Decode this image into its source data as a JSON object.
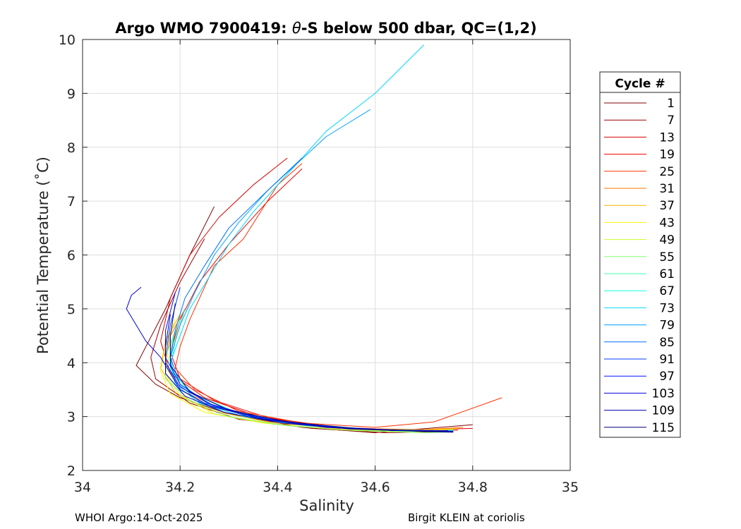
{
  "chart_data": {
    "type": "line",
    "title_prefix": "Argo WMO 7900419: ",
    "title_theta": "θ",
    "title_suffix": "-S below 500 dbar,  QC=(1,2)",
    "xlabel": "Salinity",
    "ylabel": "Potential Temperature (˚C)",
    "xlim": [
      34,
      35
    ],
    "ylim": [
      2,
      10
    ],
    "xticks": [
      "34",
      "34.2",
      "34.4",
      "34.6",
      "34.8",
      "35"
    ],
    "yticks": [
      "2",
      "3",
      "4",
      "5",
      "6",
      "7",
      "8",
      "9",
      "10"
    ],
    "grid": true,
    "legend_position": "right",
    "legend_title": "Cycle #",
    "legend": [
      {
        "label": "1",
        "color": "#800000"
      },
      {
        "label": "7",
        "color": "#a00000"
      },
      {
        "label": "13",
        "color": "#d40000"
      },
      {
        "label": "19",
        "color": "#f00000"
      },
      {
        "label": "25",
        "color": "#ff3000"
      },
      {
        "label": "31",
        "color": "#ff7000"
      },
      {
        "label": "37",
        "color": "#ffb000"
      },
      {
        "label": "43",
        "color": "#fff000"
      },
      {
        "label": "49",
        "color": "#c8ff28"
      },
      {
        "label": "55",
        "color": "#80ff70"
      },
      {
        "label": "61",
        "color": "#40ffb0"
      },
      {
        "label": "67",
        "color": "#10ffe0"
      },
      {
        "label": "73",
        "color": "#00d8ff"
      },
      {
        "label": "79",
        "color": "#00a0ff"
      },
      {
        "label": "85",
        "color": "#0070ff"
      },
      {
        "label": "91",
        "color": "#0040ff"
      },
      {
        "label": "97",
        "color": "#0010ff"
      },
      {
        "label": "103",
        "color": "#0000d8"
      },
      {
        "label": "109",
        "color": "#0000a8"
      },
      {
        "label": "115",
        "color": "#000080"
      }
    ],
    "series": [
      {
        "name": "cycle 1",
        "color": "#800000",
        "x": [
          34.27,
          34.22,
          34.17,
          34.13,
          34.11,
          34.15,
          34.2,
          34.3,
          34.45,
          34.6,
          34.8
        ],
        "y": [
          6.9,
          6.0,
          5.0,
          4.3,
          3.95,
          3.6,
          3.35,
          3.05,
          2.8,
          2.7,
          2.85
        ]
      },
      {
        "name": "cycle 7",
        "color": "#a00000",
        "x": [
          34.25,
          34.2,
          34.16,
          34.14,
          34.15,
          34.22,
          34.32,
          34.47,
          34.62,
          34.76
        ],
        "y": [
          6.3,
          5.5,
          4.7,
          4.1,
          3.7,
          3.25,
          2.95,
          2.78,
          2.7,
          2.72
        ]
      },
      {
        "name": "cycle 13",
        "color": "#d40000",
        "x": [
          34.42,
          34.35,
          34.28,
          34.22,
          34.18,
          34.16,
          34.18,
          34.25,
          34.36,
          34.5,
          34.65,
          34.77
        ],
        "y": [
          7.8,
          7.3,
          6.7,
          6.0,
          5.2,
          4.4,
          3.8,
          3.35,
          3.0,
          2.8,
          2.73,
          2.75
        ]
      },
      {
        "name": "cycle 19",
        "color": "#f00000",
        "x": [
          34.45,
          34.38,
          34.3,
          34.24,
          34.2,
          34.18,
          34.2,
          34.27,
          34.38,
          34.52,
          34.67,
          34.8
        ],
        "y": [
          7.6,
          7.0,
          6.2,
          5.5,
          4.8,
          4.2,
          3.7,
          3.3,
          2.98,
          2.8,
          2.75,
          2.78
        ]
      },
      {
        "name": "cycle 25",
        "color": "#ff3000",
        "x": [
          34.45,
          34.4,
          34.33,
          34.27,
          34.24,
          34.22,
          34.2,
          34.19,
          34.23,
          34.32,
          34.45,
          34.6,
          34.72,
          34.86
        ],
        "y": [
          7.7,
          7.3,
          6.3,
          5.8,
          5.2,
          4.8,
          4.3,
          3.9,
          3.5,
          3.1,
          2.88,
          2.8,
          2.9,
          3.35
        ]
      },
      {
        "name": "cycle 31",
        "color": "#ff7000",
        "x": [
          34.21,
          34.18,
          34.17,
          34.2,
          34.28,
          34.4,
          34.55,
          34.7,
          34.78
        ],
        "y": [
          5.0,
          4.5,
          4.0,
          3.5,
          3.15,
          2.92,
          2.78,
          2.76,
          2.8
        ]
      },
      {
        "name": "cycle 37",
        "color": "#ffb000",
        "x": [
          34.2,
          34.17,
          34.16,
          34.19,
          34.26,
          34.38,
          34.53,
          34.68,
          34.77
        ],
        "y": [
          4.9,
          4.4,
          3.9,
          3.45,
          3.12,
          2.9,
          2.77,
          2.74,
          2.78
        ]
      },
      {
        "name": "cycle 43",
        "color": "#fff000",
        "x": [
          34.19,
          34.17,
          34.16,
          34.18,
          34.25,
          34.37,
          34.52,
          34.67,
          34.76
        ],
        "y": [
          4.8,
          4.3,
          3.85,
          3.42,
          3.08,
          2.88,
          2.76,
          2.73,
          2.76
        ]
      },
      {
        "name": "cycle 49",
        "color": "#c8ff28",
        "x": [
          34.2,
          34.18,
          34.17,
          34.2,
          34.27,
          34.39,
          34.54,
          34.69,
          34.76
        ],
        "y": [
          4.7,
          4.2,
          3.8,
          3.38,
          3.05,
          2.86,
          2.75,
          2.72,
          2.74
        ]
      },
      {
        "name": "cycle 55",
        "color": "#80ff70",
        "x": [
          34.19,
          34.17,
          34.17,
          34.22,
          34.3,
          34.42,
          34.56,
          34.7,
          34.75
        ],
        "y": [
          4.6,
          4.1,
          3.7,
          3.3,
          3.0,
          2.83,
          2.74,
          2.7,
          2.71
        ]
      },
      {
        "name": "cycle 61",
        "color": "#40ffb0",
        "x": [
          34.2,
          34.18,
          34.18,
          34.23,
          34.32,
          34.44,
          34.58,
          34.71,
          34.76
        ],
        "y": [
          4.8,
          4.3,
          3.85,
          3.4,
          3.06,
          2.86,
          2.76,
          2.72,
          2.74
        ]
      },
      {
        "name": "cycle 67",
        "color": "#10ffe0",
        "x": [
          34.21,
          34.19,
          34.18,
          34.22,
          34.31,
          34.43,
          34.58,
          34.72,
          34.76
        ],
        "y": [
          5.0,
          4.4,
          3.9,
          3.45,
          3.1,
          2.88,
          2.77,
          2.73,
          2.75
        ]
      },
      {
        "name": "cycle 73",
        "color": "#00d8ff",
        "x": [
          34.7,
          34.6,
          34.5,
          34.45,
          34.4,
          34.35,
          34.3,
          34.26,
          34.22,
          34.2,
          34.18,
          34.19,
          34.24,
          34.33,
          34.46,
          34.6,
          34.73
        ],
        "y": [
          9.9,
          9.0,
          8.3,
          7.8,
          7.3,
          6.8,
          6.2,
          5.6,
          5.0,
          4.5,
          4.0,
          3.6,
          3.25,
          3.0,
          2.83,
          2.76,
          2.74
        ]
      },
      {
        "name": "cycle 79",
        "color": "#00a0ff",
        "x": [
          34.59,
          34.5,
          34.44,
          34.38,
          34.32,
          34.27,
          34.23,
          34.2,
          34.18,
          34.19,
          34.24,
          34.34,
          34.47,
          34.61,
          34.74
        ],
        "y": [
          8.7,
          8.2,
          7.7,
          7.2,
          6.6,
          6.0,
          5.3,
          4.7,
          4.1,
          3.65,
          3.28,
          3.0,
          2.83,
          2.76,
          2.73
        ]
      },
      {
        "name": "cycle 85",
        "color": "#0070ff",
        "x": [
          34.45,
          34.38,
          34.3,
          34.25,
          34.21,
          34.19,
          34.18,
          34.2,
          34.26,
          34.36,
          34.5,
          34.64,
          34.75
        ],
        "y": [
          7.8,
          7.2,
          6.5,
          5.8,
          5.2,
          4.6,
          4.1,
          3.6,
          3.22,
          2.97,
          2.8,
          2.74,
          2.72
        ]
      },
      {
        "name": "cycle 91",
        "color": "#0040ff",
        "x": [
          34.2,
          34.18,
          34.17,
          34.2,
          34.26,
          34.36,
          34.5,
          34.64,
          34.76
        ],
        "y": [
          5.4,
          4.7,
          4.1,
          3.6,
          3.24,
          2.98,
          2.81,
          2.75,
          2.72
        ]
      },
      {
        "name": "cycle 97",
        "color": "#0010ff",
        "x": [
          34.19,
          34.17,
          34.17,
          34.2,
          34.27,
          34.38,
          34.52,
          34.66,
          34.76
        ],
        "y": [
          5.3,
          4.6,
          4.0,
          3.55,
          3.2,
          2.95,
          2.8,
          2.74,
          2.73
        ]
      },
      {
        "name": "cycle 103",
        "color": "#0000d8",
        "x": [
          34.12,
          34.1,
          34.09,
          34.11,
          34.13,
          34.16,
          34.18,
          34.2,
          34.26,
          34.37,
          34.5,
          34.64,
          34.75
        ],
        "y": [
          5.4,
          5.25,
          5.0,
          4.7,
          4.4,
          4.1,
          3.8,
          3.5,
          3.2,
          2.95,
          2.8,
          2.74,
          2.74
        ]
      },
      {
        "name": "cycle 109",
        "color": "#0000a8",
        "x": [
          34.18,
          34.17,
          34.17,
          34.21,
          34.29,
          34.41,
          34.55,
          34.68,
          34.76
        ],
        "y": [
          4.9,
          4.3,
          3.8,
          3.38,
          3.08,
          2.88,
          2.77,
          2.73,
          2.71
        ]
      },
      {
        "name": "cycle 115",
        "color": "#000080",
        "x": [
          34.19,
          34.18,
          34.18,
          34.22,
          34.3,
          34.42,
          34.56,
          34.69,
          34.76
        ],
        "y": [
          5.1,
          4.5,
          3.95,
          3.46,
          3.12,
          2.9,
          2.78,
          2.73,
          2.72
        ]
      }
    ]
  },
  "footer": {
    "left": "WHOI Argo:14-Oct-2025",
    "right": "Birgit KLEIN at coriolis"
  }
}
